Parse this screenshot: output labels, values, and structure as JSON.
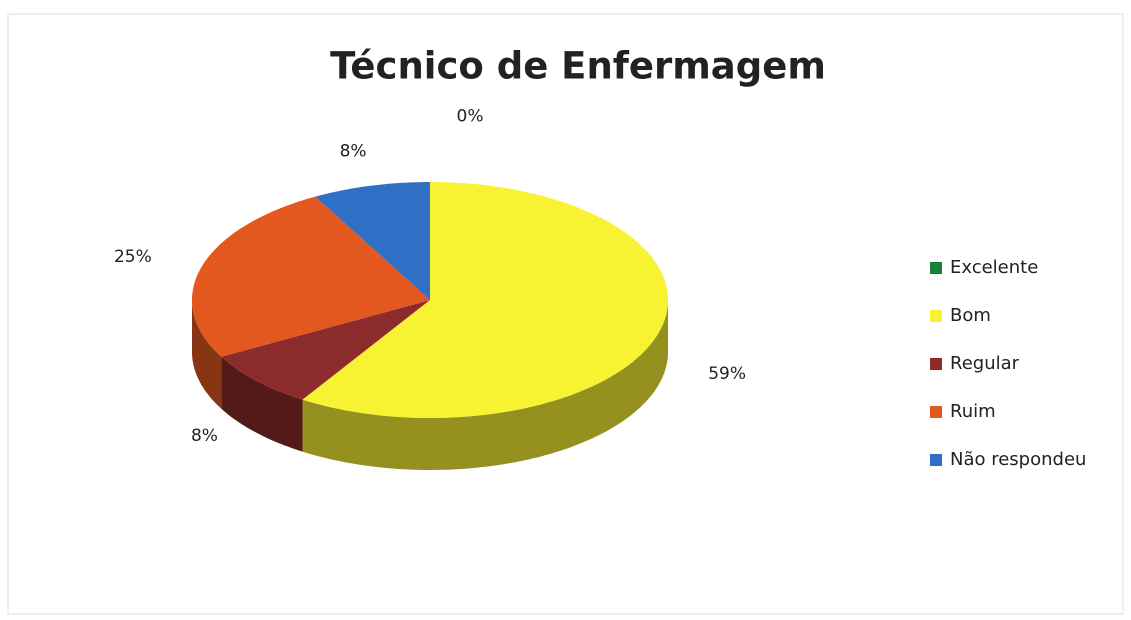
{
  "chart_data": {
    "type": "pie",
    "title": "Técnico de Enfermagem",
    "categories": [
      "Excelente",
      "Bom",
      "Regular",
      "Ruim",
      "Não respondeu"
    ],
    "values": [
      0,
      59,
      8,
      25,
      8
    ],
    "value_labels": [
      "0%",
      "59%",
      "8%",
      "25%",
      "8%"
    ],
    "colors": [
      "#17803a",
      "#f7f232",
      "#8c2b2b",
      "#e2581f",
      "#2f70c6"
    ],
    "legend": "right"
  }
}
